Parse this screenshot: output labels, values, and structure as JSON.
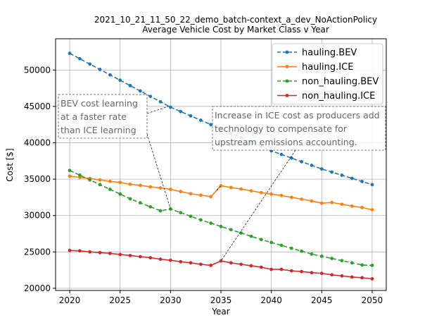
{
  "chart_data": {
    "type": "line",
    "title": "2021_10_21_11_50_22_demo_batch-context_a_dev_NoActionPolicy",
    "subtitle": "Average Vehicle Cost  by Market Class v Year",
    "xlabel": "Year",
    "ylabel": "Cost [$]",
    "xlim": [
      2018.6,
      2051.4
    ],
    "ylim": [
      19700,
      54300
    ],
    "xticks": [
      2020,
      2025,
      2030,
      2035,
      2040,
      2045,
      2050
    ],
    "yticks": [
      20000,
      25000,
      30000,
      35000,
      40000,
      45000,
      50000
    ],
    "grid": true,
    "legend_position": "top-right",
    "x": [
      2020,
      2021,
      2022,
      2023,
      2024,
      2025,
      2026,
      2027,
      2028,
      2029,
      2030,
      2031,
      2032,
      2033,
      2034,
      2035,
      2036,
      2037,
      2038,
      2039,
      2040,
      2041,
      2042,
      2043,
      2044,
      2045,
      2046,
      2047,
      2048,
      2049,
      2050
    ],
    "series": [
      {
        "name": "hauling.BEV",
        "color": "#1f77b4",
        "linestyle": "dashed",
        "values": [
          52300,
          51560,
          50820,
          50080,
          49340,
          48600,
          47860,
          47120,
          46380,
          45640,
          44900,
          44300,
          43700,
          43100,
          42500,
          41900,
          41300,
          40700,
          40100,
          39500,
          38900,
          38400,
          37900,
          37400,
          36900,
          36400,
          35970,
          35540,
          35110,
          34680,
          34250
        ]
      },
      {
        "name": "hauling.ICE",
        "color": "#ff7f0e",
        "linestyle": "solid",
        "values": [
          35400,
          35250,
          35100,
          34900,
          34700,
          34550,
          34300,
          34150,
          33950,
          33800,
          33600,
          33300,
          33000,
          32800,
          32600,
          34100,
          33850,
          33650,
          33400,
          33150,
          32950,
          32750,
          32500,
          32250,
          32000,
          31700,
          31800,
          31550,
          31300,
          31100,
          30800
        ]
      },
      {
        "name": "non_hauling.BEV",
        "color": "#2ca02c",
        "linestyle": "dashed",
        "values": [
          36200,
          35550,
          34900,
          34250,
          33600,
          32950,
          32300,
          31750,
          31200,
          30650,
          30900,
          30400,
          29900,
          29400,
          28950,
          28500,
          28050,
          27600,
          27150,
          26700,
          26300,
          25900,
          25500,
          25100,
          24700,
          24400,
          24100,
          23800,
          23500,
          23200,
          23150
        ]
      },
      {
        "name": "non_hauling.ICE",
        "color": "#d62728",
        "linestyle": "solid",
        "values": [
          25200,
          25150,
          25000,
          24900,
          24800,
          24650,
          24500,
          24350,
          24200,
          24000,
          23850,
          23650,
          23500,
          23300,
          23150,
          23750,
          23500,
          23300,
          23100,
          22900,
          22600,
          22600,
          22400,
          22300,
          22150,
          22050,
          21850,
          21700,
          21550,
          21450,
          21300
        ]
      }
    ],
    "annotations": [
      {
        "lines": [
          "BEV cost learning",
          "at a faster rate",
          "than ICE learning"
        ],
        "pointers": [
          [
            2030,
            45100
          ],
          [
            2030,
            30900
          ]
        ]
      },
      {
        "lines": [
          "Increase in ICE cost as producers add",
          "technology to compensate for",
          "upstream emissions accounting."
        ],
        "pointers": [
          [
            2035,
            34100
          ],
          [
            2035,
            23750
          ]
        ]
      }
    ]
  }
}
